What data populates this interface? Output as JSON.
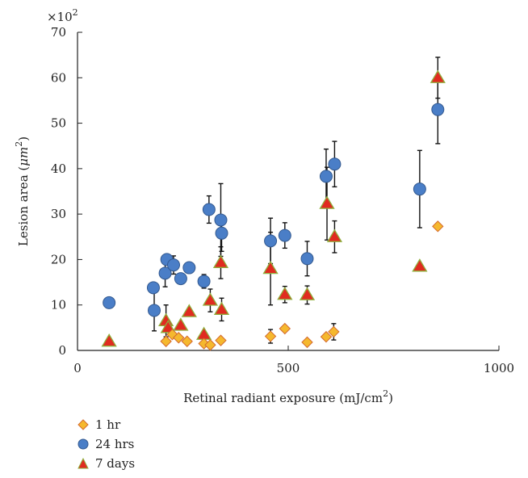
{
  "chart_data": {
    "type": "scatter",
    "xlabel": "Retinal radiant exposure (mJ/cm",
    "xlabel_sup": "2",
    "xlabel_end": ")",
    "ylabel": "Lesion area (",
    "ylabel_mu": "μm",
    "ylabel_sup": "2",
    "ylabel_end": ")",
    "y_multiplier": "×10",
    "y_multiplier_sup": "2",
    "xlim": [
      0,
      1000
    ],
    "ylim": [
      0,
      70
    ],
    "xticks": [
      0,
      500,
      1000
    ],
    "yticks": [
      0,
      10,
      20,
      30,
      40,
      50,
      60,
      70
    ],
    "grid": false,
    "legend_position": "bottom-left",
    "series": [
      {
        "name": "1 hr",
        "marker": "diamond",
        "color": "#f5b82e",
        "stroke": "#d46a2e",
        "points": [
          {
            "x": 210,
            "y": 2,
            "err": 0
          },
          {
            "x": 225,
            "y": 3.5,
            "err": 0
          },
          {
            "x": 240,
            "y": 2.8,
            "err": 0
          },
          {
            "x": 260,
            "y": 2,
            "err": 0
          },
          {
            "x": 300,
            "y": 1.5,
            "err": 0
          },
          {
            "x": 315,
            "y": 1.2,
            "err": 0
          },
          {
            "x": 340,
            "y": 2.2,
            "err": 0
          },
          {
            "x": 458,
            "y": 3.1,
            "err": 1.5
          },
          {
            "x": 492,
            "y": 4.8,
            "err": 0
          },
          {
            "x": 545,
            "y": 1.8,
            "err": 0
          },
          {
            "x": 590,
            "y": 3,
            "err": 0
          },
          {
            "x": 608,
            "y": 4.1,
            "err": 1.8
          },
          {
            "x": 855,
            "y": 27.3,
            "err": 0
          }
        ]
      },
      {
        "name": "24 hrs",
        "marker": "circle",
        "color": "#4a7ec7",
        "stroke": "#33598f",
        "points": [
          {
            "x": 75,
            "y": 10.5,
            "err": 0
          },
          {
            "x": 180,
            "y": 13.8,
            "err": 0
          },
          {
            "x": 182,
            "y": 8.8,
            "err": 4.5
          },
          {
            "x": 208,
            "y": 17,
            "err": 3
          },
          {
            "x": 212,
            "y": 20,
            "err": 0
          },
          {
            "x": 228,
            "y": 18.8,
            "err": 2
          },
          {
            "x": 245,
            "y": 15.8,
            "err": 0
          },
          {
            "x": 265,
            "y": 18.2,
            "err": 0
          },
          {
            "x": 300,
            "y": 15.2,
            "err": 1.5
          },
          {
            "x": 312,
            "y": 31,
            "err": 3
          },
          {
            "x": 340,
            "y": 28.7,
            "err": 8
          },
          {
            "x": 342,
            "y": 25.8,
            "err": 4
          },
          {
            "x": 458,
            "y": 24.1,
            "err": 5
          },
          {
            "x": 492,
            "y": 25.3,
            "err": 2.8
          },
          {
            "x": 545,
            "y": 20.2,
            "err": 3.8
          },
          {
            "x": 590,
            "y": 38.3,
            "err": 6
          },
          {
            "x": 610,
            "y": 41,
            "err": 5
          },
          {
            "x": 812,
            "y": 35.5,
            "err": 8.5
          },
          {
            "x": 855,
            "y": 53,
            "err": 7.5
          }
        ]
      },
      {
        "name": "7 days",
        "marker": "triangle",
        "color": "#e02b20",
        "stroke": "#8fae3c",
        "points": [
          {
            "x": 75,
            "y": 2,
            "err": 0
          },
          {
            "x": 210,
            "y": 6.5,
            "err": 3.5
          },
          {
            "x": 215,
            "y": 5,
            "err": 0
          },
          {
            "x": 245,
            "y": 5.5,
            "err": 0
          },
          {
            "x": 265,
            "y": 8.5,
            "err": 0
          },
          {
            "x": 300,
            "y": 3.5,
            "err": 0
          },
          {
            "x": 315,
            "y": 11,
            "err": 2.5
          },
          {
            "x": 340,
            "y": 19.3,
            "err": 3.5
          },
          {
            "x": 342,
            "y": 9,
            "err": 2.5
          },
          {
            "x": 458,
            "y": 18,
            "err": 8
          },
          {
            "x": 492,
            "y": 12.3,
            "err": 1.8
          },
          {
            "x": 545,
            "y": 12.2,
            "err": 2
          },
          {
            "x": 592,
            "y": 32.3,
            "err": 8
          },
          {
            "x": 610,
            "y": 25,
            "err": 3.5
          },
          {
            "x": 812,
            "y": 18.5,
            "err": 0
          },
          {
            "x": 855,
            "y": 60,
            "err": 4.5
          }
        ]
      }
    ]
  },
  "legend": {
    "items": [
      "1 hr",
      "24 hrs",
      "7 days"
    ]
  }
}
